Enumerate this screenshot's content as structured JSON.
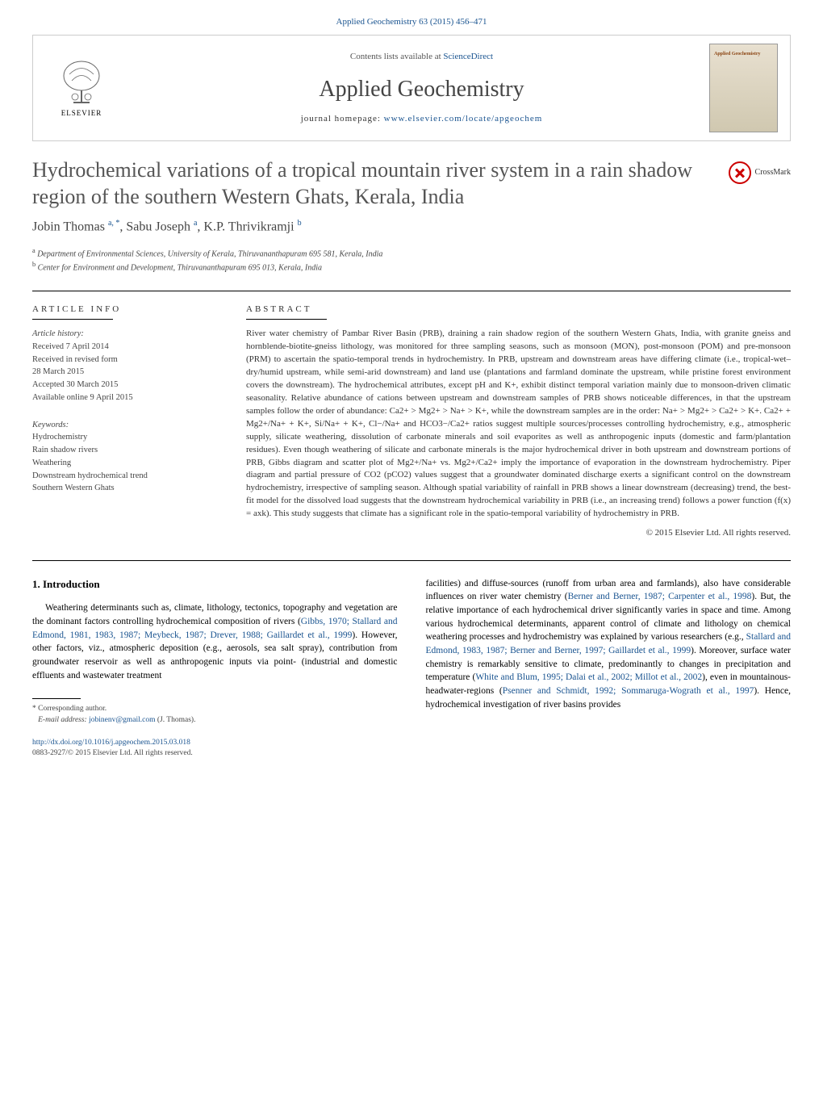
{
  "header": {
    "top_link": "Applied Geochemistry 63 (2015) 456–471",
    "contents_prefix": "Contents lists available at ",
    "contents_link": "ScienceDirect",
    "journal_name": "Applied Geochemistry",
    "homepage_prefix": "journal homepage: ",
    "homepage_url": "www.elsevier.com/locate/apgeochem",
    "elsevier_label": "ELSEVIER",
    "cover_label": "Applied Geochemistry",
    "crossmark_label": "CrossMark"
  },
  "article": {
    "title": "Hydrochemical variations of a tropical mountain river system in a rain shadow region of the southern Western Ghats, Kerala, India",
    "authors_html": "Jobin Thomas <sup>a, *</sup>, Sabu Joseph <sup>a</sup>, K.P. Thrivikramji <sup>b</sup>",
    "affiliations": [
      {
        "sup": "a",
        "text": "Department of Environmental Sciences, University of Kerala, Thiruvananthapuram 695 581, Kerala, India"
      },
      {
        "sup": "b",
        "text": "Center for Environment and Development, Thiruvananthapuram 695 013, Kerala, India"
      }
    ]
  },
  "article_info": {
    "header": "ARTICLE INFO",
    "history_label": "Article history:",
    "history": [
      "Received 7 April 2014",
      "Received in revised form",
      "28 March 2015",
      "Accepted 30 March 2015",
      "Available online 9 April 2015"
    ],
    "keywords_label": "Keywords:",
    "keywords": [
      "Hydrochemistry",
      "Rain shadow rivers",
      "Weathering",
      "Downstream hydrochemical trend",
      "Southern Western Ghats"
    ]
  },
  "abstract": {
    "header": "ABSTRACT",
    "text": "River water chemistry of Pambar River Basin (PRB), draining a rain shadow region of the southern Western Ghats, India, with granite gneiss and hornblende-biotite-gneiss lithology, was monitored for three sampling seasons, such as monsoon (MON), post-monsoon (POM) and pre-monsoon (PRM) to ascertain the spatio-temporal trends in hydrochemistry. In PRB, upstream and downstream areas have differing climate (i.e., tropical-wet–dry/humid upstream, while semi-arid downstream) and land use (plantations and farmland dominate the upstream, while pristine forest environment covers the downstream). The hydrochemical attributes, except pH and K+, exhibit distinct temporal variation mainly due to monsoon-driven climatic seasonality. Relative abundance of cations between upstream and downstream samples of PRB shows noticeable differences, in that the upstream samples follow the order of abundance: Ca2+ > Mg2+ > Na+ > K+, while the downstream samples are in the order: Na+ > Mg2+ > Ca2+ > K+. Ca2+ + Mg2+/Na+ + K+, Si/Na+ + K+, Cl−/Na+ and HCO3−/Ca2+ ratios suggest multiple sources/processes controlling hydrochemistry, e.g., atmospheric supply, silicate weathering, dissolution of carbonate minerals and soil evaporites as well as anthropogenic inputs (domestic and farm/plantation residues). Even though weathering of silicate and carbonate minerals is the major hydrochemical driver in both upstream and downstream portions of PRB, Gibbs diagram and scatter plot of Mg2+/Na+ vs. Mg2+/Ca2+ imply the importance of evaporation in the downstream hydrochemistry. Piper diagram and partial pressure of CO2 (pCO2) values suggest that a groundwater dominated discharge exerts a significant control on the downstream hydrochemistry, irrespective of sampling season. Although spatial variability of rainfall in PRB shows a linear downstream (decreasing) trend, the best-fit model for the dissolved load suggests that the downstream hydrochemical variability in PRB (i.e., an increasing trend) follows a power function (f(x) = axk). This study suggests that climate has a significant role in the spatio-temporal variability of hydrochemistry in PRB.",
    "copyright": "© 2015 Elsevier Ltd. All rights reserved."
  },
  "body": {
    "heading": "1. Introduction",
    "left_para": "Weathering determinants such as, climate, lithology, tectonics, topography and vegetation are the dominant factors controlling hydrochemical composition of rivers (Gibbs, 1970; Stallard and Edmond, 1981, 1983, 1987; Meybeck, 1987; Drever, 1988; Gaillardet et al., 1999). However, other factors, viz., atmospheric deposition (e.g., aerosols, sea salt spray), contribution from groundwater reservoir as well as anthropogenic inputs via point- (industrial and domestic effluents and wastewater treatment",
    "right_para": "facilities) and diffuse-sources (runoff from urban area and farmlands), also have considerable influences on river water chemistry (Berner and Berner, 1987; Carpenter et al., 1998). But, the relative importance of each hydrochemical driver significantly varies in space and time. Among various hydrochemical determinants, apparent control of climate and lithology on chemical weathering processes and hydrochemistry was explained by various researchers (e.g., Stallard and Edmond, 1983, 1987; Berner and Berner, 1997; Gaillardet et al., 1999). Moreover, surface water chemistry is remarkably sensitive to climate, predominantly to changes in precipitation and temperature (White and Blum, 1995; Dalai et al., 2002; Millot et al., 2002), even in mountainous-headwater-regions (Psenner and Schmidt, 1992; Sommaruga-Wograth et al., 1997). Hence, hydrochemical investigation of river basins provides"
  },
  "footnote": {
    "corr": "* Corresponding author.",
    "email_label": "E-mail address: ",
    "email": "jobinenv@gmail.com",
    "email_suffix": " (J. Thomas)."
  },
  "doi": {
    "url": "http://dx.doi.org/10.1016/j.apgeochem.2015.03.018",
    "issn_line": "0883-2927/© 2015 Elsevier Ltd. All rights reserved."
  },
  "refs_blue": {
    "left1": "Gibbs, 1970; Stallard and Edmond, 1981, 1983, 1987; Meybeck, 1987; Drever, 1988; Gaillardet et al., 1999",
    "right1": "Berner and Berner, 1987; Carpenter et al., 1998",
    "right2": "Stallard and Edmond, 1983, 1987; Berner and Berner, 1997; Gaillardet et al., 1999",
    "right3": "White and Blum, 1995; Dalai et al., 2002; Millot et al., 2002",
    "right4": "Psenner and Schmidt, 1992; Sommaruga-Wograth et al., 1997"
  }
}
